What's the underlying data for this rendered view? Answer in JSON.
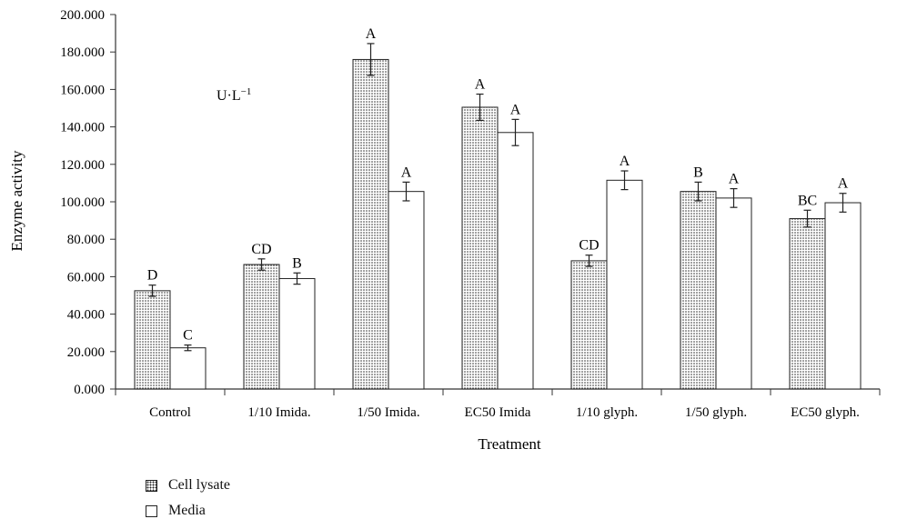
{
  "chart_data": {
    "type": "bar",
    "xlabel": "Treatment",
    "ylabel": "Enzyme activity",
    "unit_label_main": "U·L",
    "unit_label_exp": "−1",
    "ylim": [
      0,
      200
    ],
    "yticks": [
      "0.000",
      "20.000",
      "40.000",
      "60.000",
      "80.000",
      "100.000",
      "120.000",
      "140.000",
      "160.000",
      "180.000",
      "200.000"
    ],
    "categories": [
      "Control",
      "1/10 Imida.",
      "1/50 Imida.",
      "EC50 Imida",
      "1/10 glyph.",
      "1/50 glyph.",
      "EC50 glyph."
    ],
    "series": [
      {
        "name": "Cell lysate",
        "pattern": "dotted",
        "values": [
          52.5,
          66.5,
          176,
          150.5,
          68.5,
          105.5,
          91
        ],
        "errors": [
          3,
          3,
          8.5,
          7,
          3,
          5,
          4.5
        ],
        "letters": [
          "D",
          "CD",
          "A",
          "A",
          "CD",
          "B",
          "BC"
        ]
      },
      {
        "name": "Media",
        "pattern": "plain",
        "values": [
          22,
          59,
          105.5,
          137,
          111.5,
          102,
          99.5
        ],
        "errors": [
          1.5,
          3,
          5,
          7,
          5,
          5,
          5
        ],
        "letters": [
          "C",
          "B",
          "A",
          "A",
          "A",
          "A",
          "A"
        ]
      }
    ],
    "grid": false,
    "legend_position": "bottom-left"
  },
  "legend": {
    "items": [
      {
        "label": "Cell lysate"
      },
      {
        "label": "Media"
      }
    ]
  },
  "colors": {
    "bar_stroke": "#222222",
    "axis": "#333333",
    "background": "#ffffff"
  }
}
